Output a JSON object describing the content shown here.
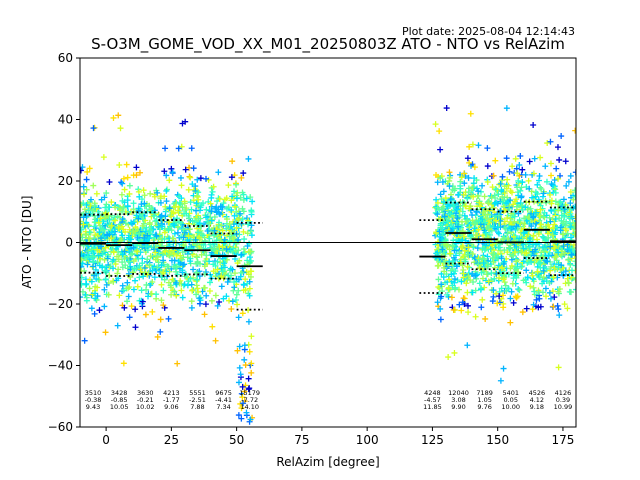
{
  "plot_date": "Plot date: 2025-08-04 12:14:43",
  "chart_data": {
    "type": "scatter",
    "title": "S-O3M_GOME_VOD_XX_M01_20250803Z ATO - NTO vs RelAzim",
    "xlabel": "RelAzim [degree]",
    "ylabel": "ATO - NTO [DU]",
    "xlim": [
      -10,
      180
    ],
    "ylim": [
      -60,
      60
    ],
    "xticks": [
      0,
      25,
      50,
      75,
      100,
      125,
      150,
      175
    ],
    "yticks": [
      -60,
      -40,
      -20,
      0,
      20,
      40,
      60
    ],
    "zero_line": 0,
    "marker": "+",
    "colors": [
      "#0000cd",
      "#0064ff",
      "#00b4ff",
      "#00e4f8",
      "#30ffc8",
      "#60ff98",
      "#a0ff58",
      "#d8ff20",
      "#ffe000",
      "#ffc000"
    ],
    "bins": [
      {
        "center": -5,
        "count": "3510",
        "mean": "-0.38",
        "std": "9.43"
      },
      {
        "center": 5,
        "count": "3428",
        "mean": "-0.85",
        "std": "10.05"
      },
      {
        "center": 15,
        "count": "3630",
        "mean": "-0.21",
        "std": "10.02"
      },
      {
        "center": 25,
        "count": "4213",
        "mean": "-1.77",
        "std": "9.06"
      },
      {
        "center": 35,
        "count": "5551",
        "mean": "-2.51",
        "std": "7.88"
      },
      {
        "center": 45,
        "count": "9675",
        "mean": "-4.41",
        "std": "7.34"
      },
      {
        "center": 55,
        "count": "15179",
        "mean": "-7.72",
        "std": "14.10"
      },
      {
        "center": 125,
        "count": "4248",
        "mean": "-4.57",
        "std": "11.85"
      },
      {
        "center": 135,
        "count": "12040",
        "mean": "3.08",
        "std": "9.90"
      },
      {
        "center": 145,
        "count": "7189",
        "mean": "1.05",
        "std": "9.76"
      },
      {
        "center": 155,
        "count": "5401",
        "mean": "0.05",
        "std": "10.00"
      },
      {
        "center": 165,
        "count": "4526",
        "mean": "4.12",
        "std": "9.18"
      },
      {
        "center": 175,
        "count": "4126",
        "mean": "0.39",
        "std": "10.99"
      }
    ],
    "point_clusters": [
      {
        "x_range": [
          -10,
          56
        ],
        "y_center": 0,
        "spread": 13
      },
      {
        "x_range": [
          126,
          180
        ],
        "y_center": 2,
        "spread": 14
      }
    ]
  }
}
